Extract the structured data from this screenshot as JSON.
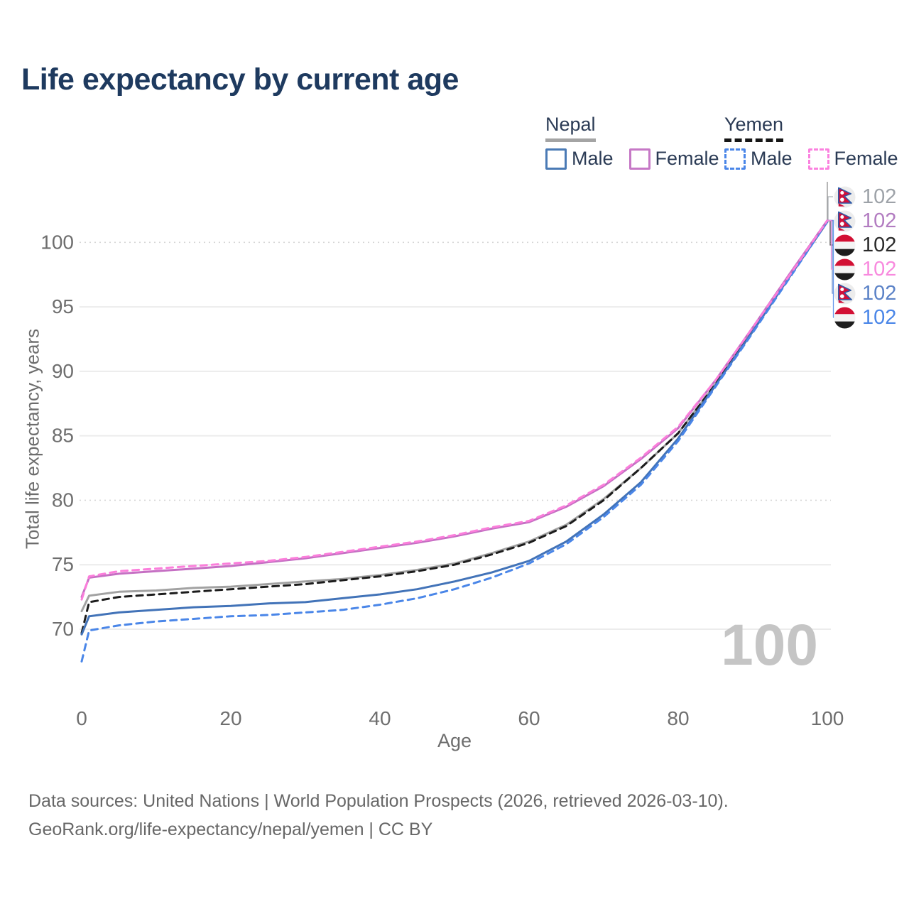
{
  "title": "Life expectancy by current age",
  "legend": {
    "groups": [
      {
        "country": "Nepal",
        "line_style": "solid",
        "underline_color": "#a4a4a4",
        "entries": [
          {
            "label": "Male",
            "color": "#4a7ab5",
            "dashed": false
          },
          {
            "label": "Female",
            "color": "#c678c6",
            "dashed": false
          }
        ]
      },
      {
        "country": "Yemen",
        "line_style": "dashed",
        "underline_color": "#161616",
        "entries": [
          {
            "label": "Male",
            "color": "#4a86e8",
            "dashed": true
          },
          {
            "label": "Female",
            "color": "#fb81df",
            "dashed": true
          }
        ]
      }
    ]
  },
  "chart_data": {
    "type": "line",
    "title": "Life expectancy by current age",
    "xlabel": "Age",
    "ylabel": "Total life expectancy, years",
    "x_ticks": [
      0,
      20,
      40,
      60,
      80,
      100
    ],
    "y_ticks": [
      70,
      75,
      80,
      85,
      90,
      95,
      100
    ],
    "xlim": [
      0,
      100
    ],
    "ylim": [
      67,
      102.5
    ],
    "grid": true,
    "dotted_gridlines": [
      80,
      100
    ],
    "legend_position": "top-right",
    "x": [
      0,
      1,
      5,
      10,
      15,
      20,
      25,
      30,
      35,
      40,
      45,
      50,
      55,
      60,
      65,
      70,
      75,
      80,
      85,
      90,
      95,
      100
    ],
    "series": [
      {
        "id": "nepal-total",
        "name": "Nepal Total",
        "country": "nepal",
        "color": "#a2a2a2",
        "dash": "solid",
        "label_row": 0,
        "label_color": "#9da2a8",
        "end_label": "102",
        "values": [
          71.4,
          72.6,
          72.9,
          73.0,
          73.2,
          73.3,
          73.5,
          73.7,
          73.9,
          74.2,
          74.6,
          75.1,
          75.9,
          76.8,
          78.1,
          80.1,
          82.5,
          85.2,
          89.0,
          93.2,
          97.4,
          101.6
        ]
      },
      {
        "id": "yemen-total",
        "name": "Yemen Total",
        "country": "yemen",
        "color": "#1c1c1c",
        "dash": "dashed",
        "label_row": 2,
        "label_color": "#2a2a2a",
        "end_label": "102",
        "values": [
          69.7,
          72.1,
          72.5,
          72.7,
          72.9,
          73.1,
          73.3,
          73.5,
          73.8,
          74.1,
          74.5,
          75.0,
          75.8,
          76.7,
          78.0,
          80.0,
          82.5,
          85.2,
          89.0,
          93.2,
          97.4,
          101.6
        ]
      },
      {
        "id": "nepal-male",
        "name": "Nepal Male",
        "country": "nepal",
        "color": "#4273b8",
        "dash": "solid",
        "label_row": 4,
        "label_color": "#5b82c7",
        "end_label": "102",
        "values": [
          69.6,
          71.0,
          71.3,
          71.5,
          71.7,
          71.8,
          72.0,
          72.1,
          72.4,
          72.7,
          73.1,
          73.7,
          74.4,
          75.3,
          76.8,
          78.9,
          81.4,
          84.8,
          88.9,
          93.1,
          97.4,
          101.6
        ]
      },
      {
        "id": "yemen-male",
        "name": "Yemen Male",
        "country": "yemen",
        "color": "#4a86e8",
        "dash": "dashed",
        "label_row": 5,
        "label_color": "#4a86e8",
        "end_label": "102",
        "values": [
          67.5,
          69.9,
          70.3,
          70.6,
          70.8,
          71.0,
          71.1,
          71.3,
          71.5,
          71.9,
          72.4,
          73.1,
          74.0,
          75.1,
          76.6,
          78.7,
          81.2,
          84.6,
          88.8,
          93.0,
          97.3,
          101.6
        ]
      },
      {
        "id": "nepal-female",
        "name": "Nepal Female",
        "country": "nepal",
        "color": "#c56fc3",
        "dash": "solid",
        "label_row": 1,
        "label_color": "#b27cc1",
        "end_label": "102",
        "values": [
          72.5,
          74.0,
          74.3,
          74.5,
          74.7,
          74.9,
          75.2,
          75.5,
          75.9,
          76.3,
          76.7,
          77.2,
          77.8,
          78.3,
          79.5,
          81.1,
          83.2,
          85.6,
          89.3,
          93.4,
          97.6,
          101.7
        ]
      },
      {
        "id": "yemen-female",
        "name": "Yemen Female",
        "country": "yemen",
        "color": "#fb7edb",
        "dash": "dashed",
        "label_row": 3,
        "label_color": "#f88ade",
        "end_label": "102",
        "values": [
          72.3,
          74.1,
          74.5,
          74.7,
          74.9,
          75.1,
          75.3,
          75.6,
          76.0,
          76.4,
          76.8,
          77.3,
          77.9,
          78.4,
          79.6,
          81.2,
          83.3,
          85.7,
          89.3,
          93.4,
          97.5,
          101.7
        ]
      }
    ]
  },
  "annotations": {
    "age_counter_watermark": "100"
  },
  "flag_colors": {
    "nepal": {
      "crimson": "#d0103a",
      "blue": "#2e5aa7",
      "white": "#ffffff",
      "bg": "#ececec"
    },
    "yemen": {
      "red": "#d21034",
      "white": "#f4f4f4",
      "black": "#1d1d1d"
    }
  },
  "footer": {
    "line1": "Data sources: United Nations | World Population Prospects (2026, retrieved 2026-03-10).",
    "line2": "GeoRank.org/life-expectancy/nepal/yemen | CC BY"
  }
}
